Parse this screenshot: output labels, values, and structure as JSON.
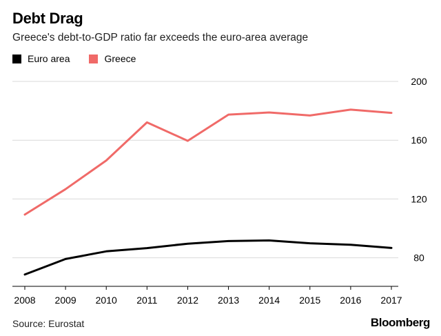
{
  "header": {
    "title": "Debt Drag",
    "subtitle": "Greece's debt-to-GDP ratio far exceeds the euro-area average"
  },
  "footer": {
    "source": "Source: Eurostat",
    "brand": "Bloomberg"
  },
  "colors": {
    "euro_area": "#000000",
    "greece": "#f06a68",
    "grid": "#d9d9d9",
    "axis": "#000000"
  },
  "chart_data": {
    "type": "line",
    "title": "Debt Drag",
    "subtitle": "Greece's debt-to-GDP ratio far exceeds the euro-area average",
    "x": [
      "2008",
      "2009",
      "2010",
      "2011",
      "2012",
      "2013",
      "2014",
      "2015",
      "2016",
      "2017"
    ],
    "series": [
      {
        "name": "Euro area",
        "color": "#000000",
        "values": [
          68.6,
          79.2,
          84.4,
          86.6,
          89.6,
          91.4,
          91.8,
          89.9,
          88.9,
          86.7
        ]
      },
      {
        "name": "Greece",
        "color": "#f06a68",
        "values": [
          109.4,
          126.7,
          146.2,
          172.1,
          159.6,
          177.4,
          178.9,
          176.8,
          180.8,
          178.6
        ]
      }
    ],
    "yticks": [
      80,
      120,
      160,
      200
    ],
    "ylim": [
      62,
      200
    ],
    "y_axis_position": "right",
    "grid": true,
    "legend": "top-left",
    "xlabel": "",
    "ylabel": ""
  }
}
